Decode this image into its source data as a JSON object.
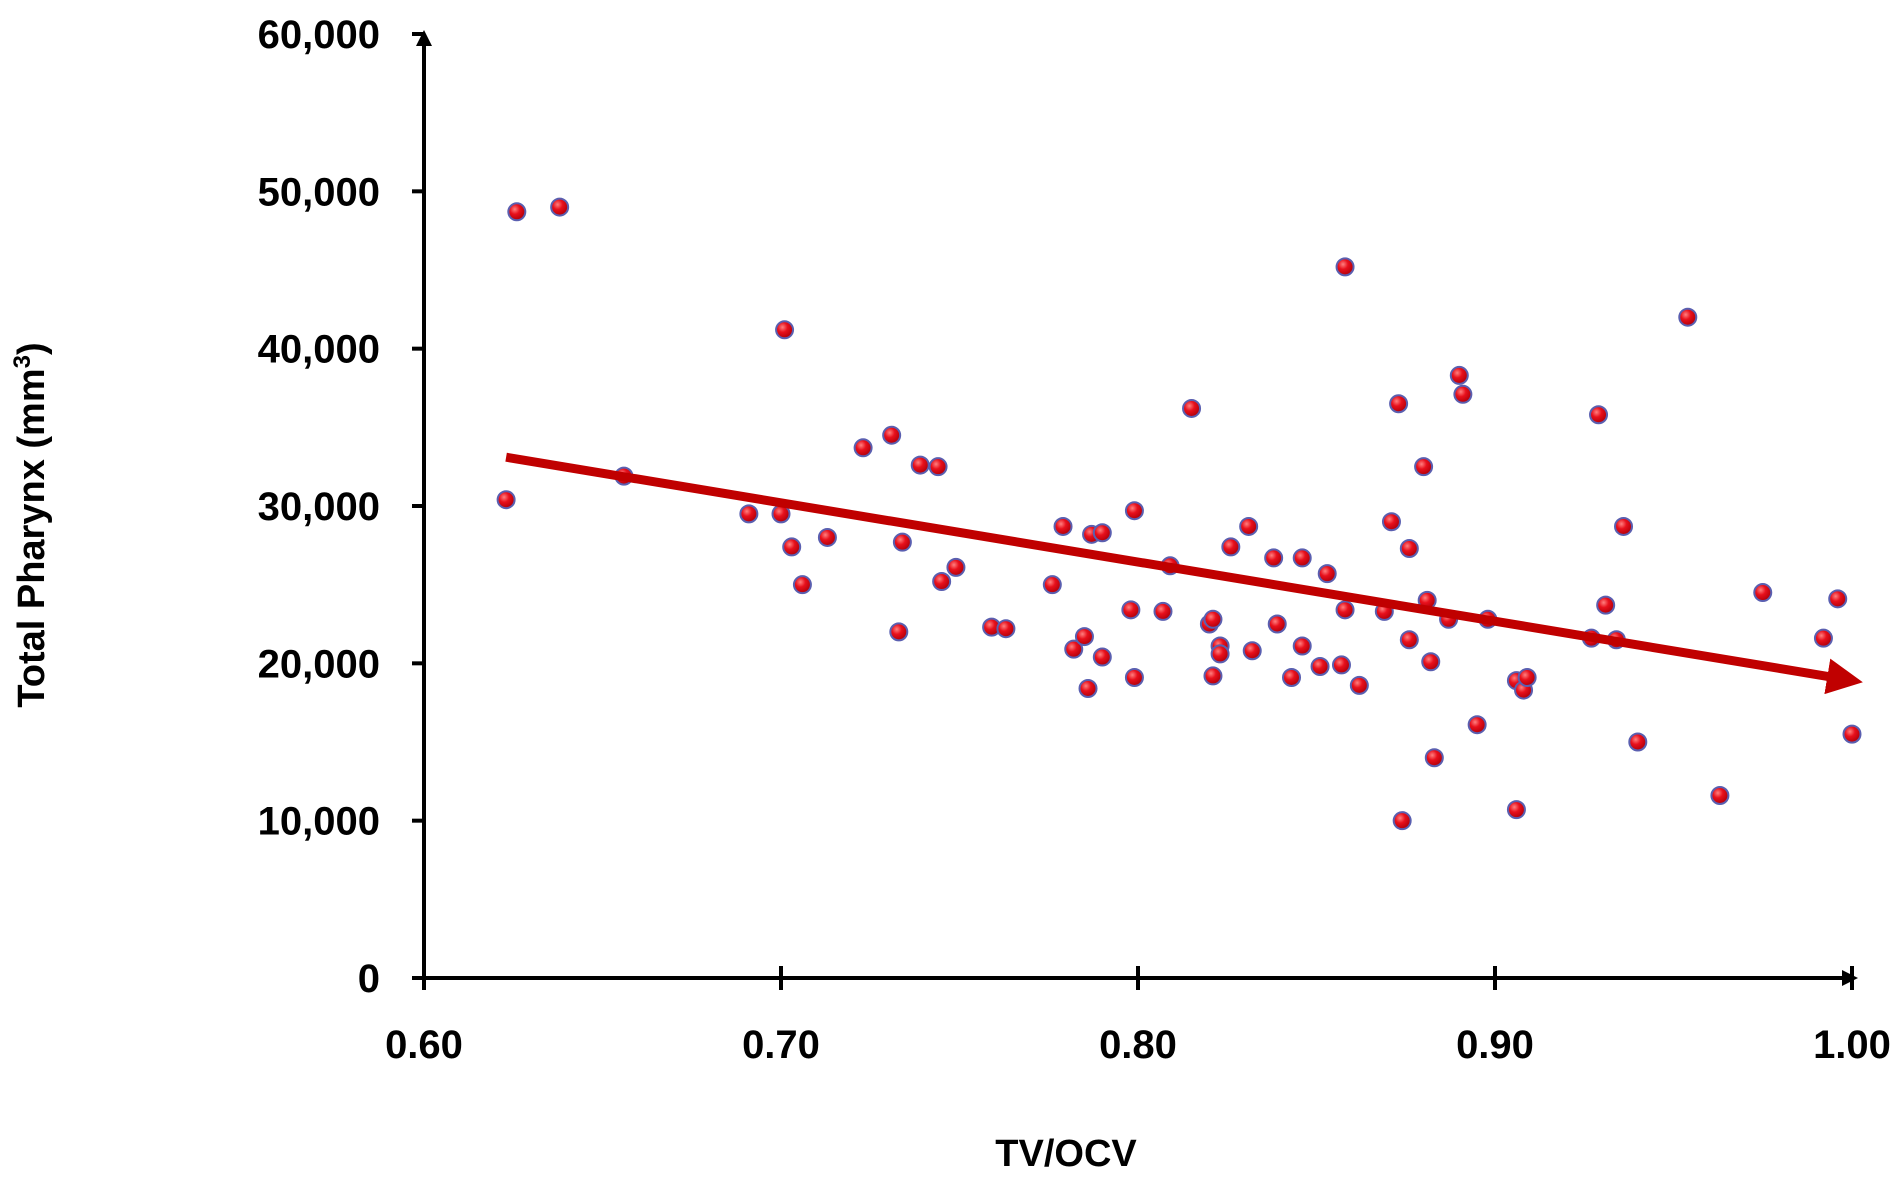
{
  "chart_data": {
    "type": "scatter",
    "title": "",
    "xlabel": "TV/OCV",
    "ylabel_main": "Total Pharynx (mm",
    "ylabel_sup": "3",
    "ylabel_end": ")",
    "xlim": [
      0.6,
      1.0
    ],
    "ylim": [
      0,
      60000
    ],
    "x_ticks": [
      0.6,
      0.7,
      0.8,
      0.9,
      1.0
    ],
    "x_tick_labels": [
      "0.60",
      "0.70",
      "0.80",
      "0.90",
      "1.00"
    ],
    "y_ticks": [
      0,
      10000,
      20000,
      30000,
      40000,
      50000,
      60000
    ],
    "y_tick_labels": [
      "0",
      "10,000",
      "20,000",
      "30,000",
      "40,000",
      "50,000",
      "60,000"
    ],
    "grid": false,
    "legend": "none",
    "colors": {
      "point_fill": "#e8101c",
      "point_stroke": "#5a5fb0",
      "trend": "#c00000",
      "axis": "#000000"
    },
    "trendline": {
      "x": [
        0.623,
        0.999
      ],
      "y": [
        33100,
        19000
      ]
    },
    "series": [
      {
        "points": [
          [
            0.623,
            30400
          ],
          [
            0.626,
            48700
          ],
          [
            0.638,
            49000
          ],
          [
            0.656,
            31900
          ],
          [
            0.691,
            29500
          ],
          [
            0.7,
            29500
          ],
          [
            0.701,
            41200
          ],
          [
            0.703,
            27400
          ],
          [
            0.706,
            25000
          ],
          [
            0.713,
            28000
          ],
          [
            0.723,
            33700
          ],
          [
            0.731,
            34500
          ],
          [
            0.733,
            22000
          ],
          [
            0.734,
            27700
          ],
          [
            0.739,
            32600
          ],
          [
            0.744,
            32500
          ],
          [
            0.745,
            25200
          ],
          [
            0.749,
            26100
          ],
          [
            0.759,
            22300
          ],
          [
            0.763,
            22200
          ],
          [
            0.776,
            25000
          ],
          [
            0.779,
            28700
          ],
          [
            0.782,
            20900
          ],
          [
            0.785,
            21700
          ],
          [
            0.787,
            28200
          ],
          [
            0.786,
            18400
          ],
          [
            0.79,
            28300
          ],
          [
            0.79,
            20400
          ],
          [
            0.798,
            23400
          ],
          [
            0.799,
            29700
          ],
          [
            0.799,
            19100
          ],
          [
            0.807,
            23300
          ],
          [
            0.809,
            26200
          ],
          [
            0.815,
            36200
          ],
          [
            0.82,
            22500
          ],
          [
            0.821,
            19200
          ],
          [
            0.821,
            22800
          ],
          [
            0.823,
            21100
          ],
          [
            0.823,
            20600
          ],
          [
            0.826,
            27400
          ],
          [
            0.831,
            28700
          ],
          [
            0.832,
            20800
          ],
          [
            0.838,
            26700
          ],
          [
            0.839,
            22500
          ],
          [
            0.843,
            19100
          ],
          [
            0.846,
            26700
          ],
          [
            0.846,
            21100
          ],
          [
            0.851,
            19800
          ],
          [
            0.853,
            25700
          ],
          [
            0.857,
            19900
          ],
          [
            0.858,
            45200
          ],
          [
            0.858,
            23400
          ],
          [
            0.862,
            18600
          ],
          [
            0.869,
            23300
          ],
          [
            0.871,
            29000
          ],
          [
            0.873,
            36500
          ],
          [
            0.874,
            10000
          ],
          [
            0.876,
            27300
          ],
          [
            0.876,
            21500
          ],
          [
            0.88,
            32500
          ],
          [
            0.881,
            24000
          ],
          [
            0.882,
            20100
          ],
          [
            0.883,
            14000
          ],
          [
            0.887,
            22800
          ],
          [
            0.89,
            38300
          ],
          [
            0.891,
            37100
          ],
          [
            0.895,
            16100
          ],
          [
            0.898,
            22800
          ],
          [
            0.906,
            18900
          ],
          [
            0.906,
            10700
          ],
          [
            0.908,
            18300
          ],
          [
            0.909,
            19100
          ],
          [
            0.927,
            21600
          ],
          [
            0.929,
            35800
          ],
          [
            0.931,
            23700
          ],
          [
            0.934,
            21500
          ],
          [
            0.936,
            28700
          ],
          [
            0.94,
            15000
          ],
          [
            0.954,
            42000
          ],
          [
            0.963,
            11600
          ],
          [
            0.975,
            24500
          ],
          [
            0.992,
            21600
          ],
          [
            0.996,
            24100
          ],
          [
            1.0,
            15500
          ]
        ]
      }
    ]
  }
}
